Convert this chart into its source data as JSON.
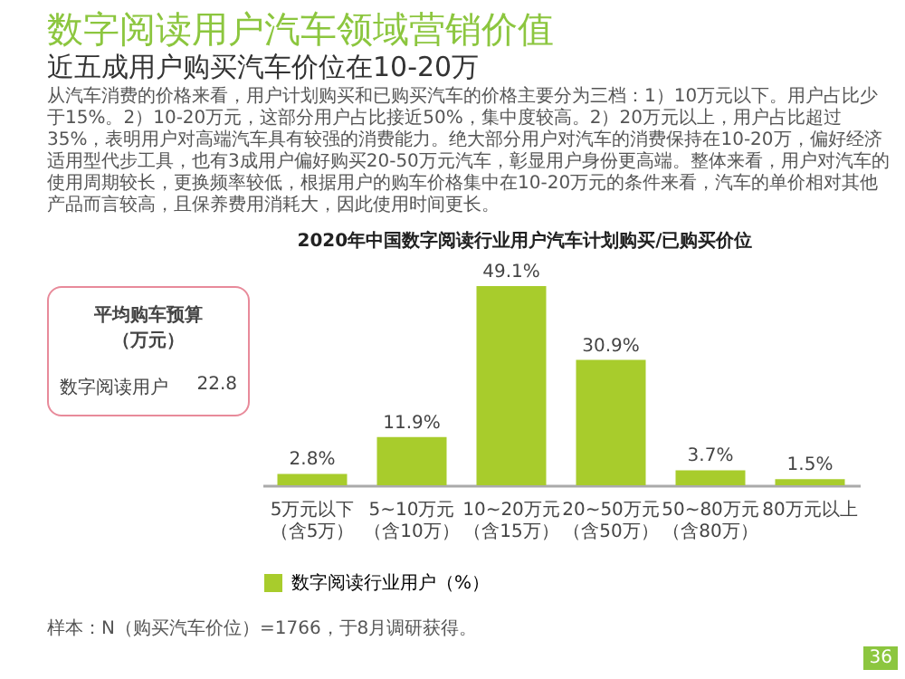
{
  "chart_data": {
    "type": "bar",
    "title": "数字阅读用户汽车领域营销价值",
    "subtitle": "近五成用户购买汽车价位在10-20万",
    "annotations": [
      "从汽车消费的价格来看，用户计划购买和已购买汽车的价格主要分为三档：1）10万元以下。用户占比少于15%。2）10-20万元，这部分用户占比接近50%，集中度较高。2）20万元以上，用户占比超过35%，表明用户对高端汽车具有较强的消费能力。绝大部分用户对汽车的消费保持在10-20万，偏好经济适用型代步工具，也有3成用户偏好购买20-50万元汽车，彰显用户身份更高端。整体来看，用户对汽车的使用周期较长，更换频率较低，根据用户的购车价格集中在10-20万元的条件来看，汽车的单价相对其他产品而言较高，且保养费用消耗大，因此使用时间更长。",
      "2020年中国数字阅读行业用户汽车计划购买/已购买价位",
      "平均购车预算（万元）",
      "数字阅读用户",
      "22.8",
      "样本：N（购买汽车价位）=1766，于8月调研获得。",
      "36"
    ],
    "categories": [
      "5万元以下（含5万）",
      "5~10万元（含10万）",
      "10~20万元（含15万）",
      "20~50万元（含50万）",
      "50~80万元（含80万）",
      "80万元以上"
    ],
    "series": [
      {
        "name": "数字阅读行业用户（%）",
        "color": "#a8cc2c",
        "values": [
          2.8,
          11.9,
          49.1,
          30.9,
          3.7,
          1.5
        ],
        "value_labels": [
          "2.8%",
          "11.9%",
          "49.1%",
          "30.9%",
          "3.7%",
          "1.5%"
        ]
      }
    ],
    "tick_labels": "x",
    "legend": "bottom"
  }
}
